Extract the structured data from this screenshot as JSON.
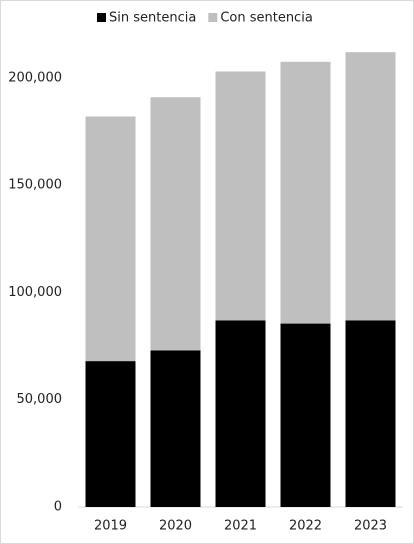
{
  "chart_data": {
    "type": "stacked_bar",
    "categories": [
      "2019",
      "2020",
      "2021",
      "2022",
      "2023"
    ],
    "series": [
      {
        "name": "Sin sentencia",
        "color": "#000000",
        "values": [
          68000,
          73000,
          87000,
          85500,
          87000
        ]
      },
      {
        "name": "Con sentencia",
        "color": "#bfbfbf",
        "values": [
          114000,
          118000,
          116000,
          122000,
          125000
        ]
      }
    ],
    "ylim": [
      0,
      220000
    ],
    "yticks": [
      0,
      {
        "value": 50000,
        "label": "50,000"
      },
      {
        "value": 100000,
        "label": "100,000"
      },
      {
        "value": 150000,
        "label": "150,000"
      },
      {
        "value": 200000,
        "label": "200,000"
      }
    ],
    "legend": "top"
  }
}
